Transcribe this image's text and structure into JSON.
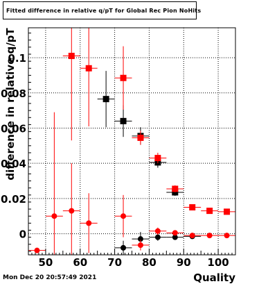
{
  "title": "Fitted difference in relative q/pT for Global Rec Pion NoHits",
  "timestamp": "Mon Dec 20 20:57:49 2021",
  "colors": {
    "black_series": "#000000",
    "red_series": "#ff0000",
    "grid": "#000000"
  },
  "chart_data": {
    "type": "scatter",
    "title": "Fitted difference in relative q/pT for Global Rec Pion NoHits",
    "xlabel": "Quality",
    "ylabel": "difference in relative q/pT",
    "xlim": [
      45,
      105
    ],
    "ylim": [
      -0.012,
      0.117
    ],
    "x_ticks": [
      50,
      60,
      70,
      80,
      90,
      100
    ],
    "y_ticks": [
      0,
      0.02,
      0.04,
      0.06,
      0.08,
      0.1
    ],
    "x_tick_labels": [
      "50",
      "60",
      "70",
      "80",
      "90",
      "100"
    ],
    "y_tick_labels": [
      "0",
      "0.02",
      "0.04",
      "0.06",
      "0.08",
      "0.1"
    ],
    "grid": true,
    "series": [
      {
        "marker": "square",
        "color": "#000000",
        "points": [
          {
            "x": 67.5,
            "y": 0.0765,
            "ey": 0.016
          },
          {
            "x": 72.5,
            "y": 0.064,
            "ey": 0.009
          },
          {
            "x": 77.5,
            "y": 0.0555,
            "ey": 0.005
          },
          {
            "x": 82.5,
            "y": 0.0405,
            "ey": 0.003
          },
          {
            "x": 87.5,
            "y": 0.0235,
            "ey": 0.002
          }
        ]
      },
      {
        "marker": "square",
        "color": "#ff0000",
        "points": [
          {
            "x": 57.5,
            "y": 0.101,
            "ey": 0.048
          },
          {
            "x": 62.5,
            "y": 0.094,
            "ey": 0.033
          },
          {
            "x": 72.5,
            "y": 0.0885,
            "ey": 0.018
          },
          {
            "x": 77.5,
            "y": 0.0545,
            "ey": 0.004
          },
          {
            "x": 82.5,
            "y": 0.043,
            "ey": 0.003
          },
          {
            "x": 87.5,
            "y": 0.0255,
            "ey": 0.002
          },
          {
            "x": 92.5,
            "y": 0.015,
            "ey": 0.001
          },
          {
            "x": 97.5,
            "y": 0.013,
            "ey": 0.001
          },
          {
            "x": 102.5,
            "y": 0.0125,
            "ey": 0.001
          }
        ]
      },
      {
        "marker": "circle",
        "color": "#000000",
        "points": [
          {
            "x": 72.5,
            "y": -0.008,
            "ey": 0.004
          },
          {
            "x": 77.5,
            "y": -0.003,
            "ey": 0.004
          },
          {
            "x": 82.5,
            "y": -0.002,
            "ey": 0.002
          },
          {
            "x": 87.5,
            "y": -0.002,
            "ey": 0.001
          },
          {
            "x": 92.5,
            "y": -0.0015,
            "ey": 0.001
          }
        ]
      },
      {
        "marker": "circle",
        "color": "#ff0000",
        "points": [
          {
            "x": 47.5,
            "y": -0.0095,
            "ey": 0.0
          },
          {
            "x": 52.5,
            "y": 0.01,
            "ey": 0.059
          },
          {
            "x": 57.5,
            "y": 0.013,
            "ey": 0.027
          },
          {
            "x": 62.5,
            "y": 0.006,
            "ey": 0.017
          },
          {
            "x": 72.5,
            "y": 0.01,
            "ey": 0.012
          },
          {
            "x": 77.5,
            "y": -0.0065,
            "ey": 0.003
          },
          {
            "x": 82.5,
            "y": 0.0015,
            "ey": 0.002
          },
          {
            "x": 87.5,
            "y": 0.0005,
            "ey": 0.001
          },
          {
            "x": 92.5,
            "y": -0.001,
            "ey": 0.001
          },
          {
            "x": 97.5,
            "y": -0.001,
            "ey": 0.001
          },
          {
            "x": 102.5,
            "y": -0.001,
            "ey": 0.001
          }
        ]
      }
    ],
    "bin_half_width": 2.5
  }
}
